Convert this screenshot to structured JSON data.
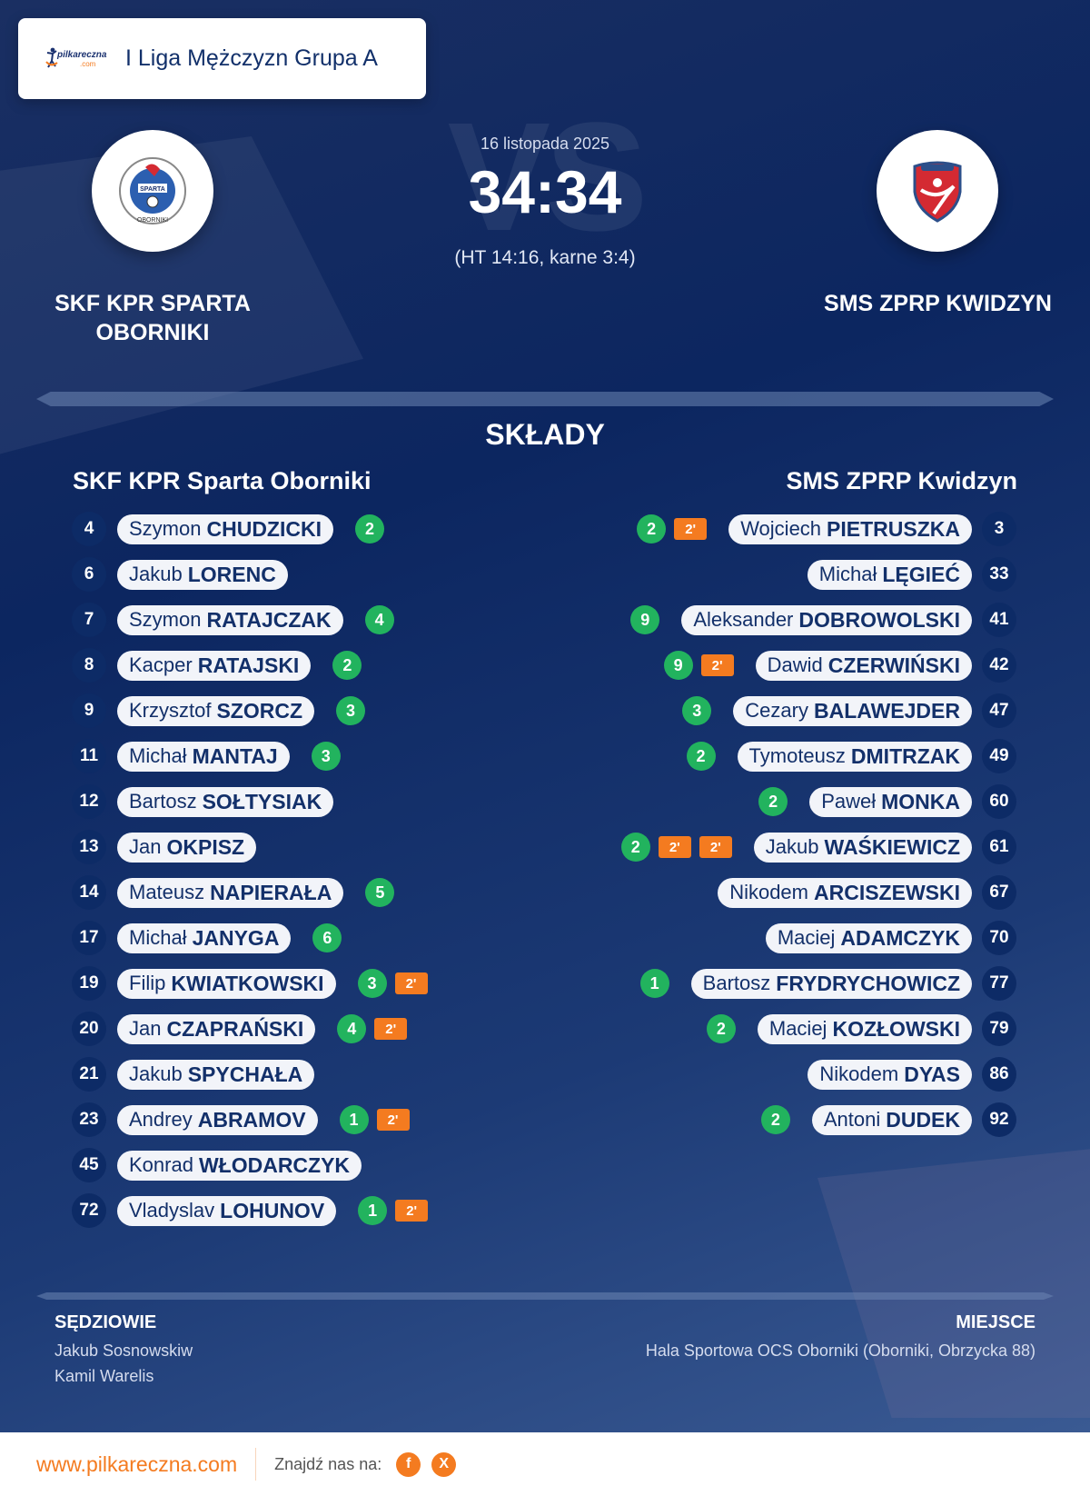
{
  "header": {
    "brand_logo_text": "pilkareczna",
    "brand_logo_suffix": ".com",
    "league": "I Liga Mężczyzn Grupa A"
  },
  "match": {
    "date": "16 listopada 2025",
    "score": "34:34",
    "score_detail": "(HT 14:16, karne 3:4)",
    "vs_watermark": "VS",
    "home": {
      "name": "SKF KPR SPARTA OBORNIKI",
      "logo": "sparta-oborniki-crest"
    },
    "away": {
      "name": "SMS ZPRP KWIDZYN",
      "logo": "sms-kwidzyn-crest"
    }
  },
  "lineups": {
    "title": "SKŁADY",
    "home": {
      "team": "SKF KPR Sparta Oborniki",
      "players": [
        {
          "number": "4",
          "first": "Szymon",
          "last": "CHUDZICKI",
          "goals": "2",
          "penalties": []
        },
        {
          "number": "6",
          "first": "Jakub",
          "last": "LORENC",
          "goals": null,
          "penalties": []
        },
        {
          "number": "7",
          "first": "Szymon",
          "last": "RATAJCZAK",
          "goals": "4",
          "penalties": []
        },
        {
          "number": "8",
          "first": "Kacper",
          "last": "RATAJSKI",
          "goals": "2",
          "penalties": []
        },
        {
          "number": "9",
          "first": "Krzysztof",
          "last": "SZORCZ",
          "goals": "3",
          "penalties": []
        },
        {
          "number": "11",
          "first": "Michał",
          "last": "MANTAJ",
          "goals": "3",
          "penalties": []
        },
        {
          "number": "12",
          "first": "Bartosz",
          "last": "SOŁTYSIAK",
          "goals": null,
          "penalties": []
        },
        {
          "number": "13",
          "first": "Jan",
          "last": "OKPISZ",
          "goals": null,
          "penalties": []
        },
        {
          "number": "14",
          "first": "Mateusz",
          "last": "NAPIERAŁA",
          "goals": "5",
          "penalties": []
        },
        {
          "number": "17",
          "first": "Michał",
          "last": "JANYGA",
          "goals": "6",
          "penalties": []
        },
        {
          "number": "19",
          "first": "Filip",
          "last": "KWIATKOWSKI",
          "goals": "3",
          "penalties": [
            "2'"
          ]
        },
        {
          "number": "20",
          "first": "Jan",
          "last": "CZAPRAŃSKI",
          "goals": "4",
          "penalties": [
            "2'"
          ]
        },
        {
          "number": "21",
          "first": "Jakub",
          "last": "SPYCHAŁA",
          "goals": null,
          "penalties": []
        },
        {
          "number": "23",
          "first": "Andrey",
          "last": "ABRAMOV",
          "goals": "1",
          "penalties": [
            "2'"
          ]
        },
        {
          "number": "45",
          "first": "Konrad",
          "last": "WŁODARCZYK",
          "goals": null,
          "penalties": []
        },
        {
          "number": "72",
          "first": "Vladyslav",
          "last": "LOHUNOV",
          "goals": "1",
          "penalties": [
            "2'"
          ]
        }
      ]
    },
    "away": {
      "team": "SMS ZPRP Kwidzyn",
      "players": [
        {
          "number": "3",
          "first": "Wojciech",
          "last": "PIETRUSZKA",
          "goals": "2",
          "penalties": [
            "2'"
          ]
        },
        {
          "number": "33",
          "first": "Michał",
          "last": "LĘGIEĆ",
          "goals": null,
          "penalties": []
        },
        {
          "number": "41",
          "first": "Aleksander",
          "last": "DOBROWOLSKI",
          "goals": "9",
          "penalties": []
        },
        {
          "number": "42",
          "first": "Dawid",
          "last": "CZERWIŃSKI",
          "goals": "9",
          "penalties": [
            "2'"
          ]
        },
        {
          "number": "47",
          "first": "Cezary",
          "last": "BALAWEJDER",
          "goals": "3",
          "penalties": []
        },
        {
          "number": "49",
          "first": "Tymoteusz",
          "last": "DMITRZAK",
          "goals": "2",
          "penalties": []
        },
        {
          "number": "60",
          "first": "Paweł",
          "last": "MONKA",
          "goals": "2",
          "penalties": []
        },
        {
          "number": "61",
          "first": "Jakub",
          "last": "WAŚKIEWICZ",
          "goals": "2",
          "penalties": [
            "2'",
            "2'"
          ]
        },
        {
          "number": "67",
          "first": "Nikodem",
          "last": "ARCISZEWSKI",
          "goals": null,
          "penalties": []
        },
        {
          "number": "70",
          "first": "Maciej",
          "last": "ADAMCZYK",
          "goals": null,
          "penalties": []
        },
        {
          "number": "77",
          "first": "Bartosz",
          "last": "FRYDRYCHOWICZ",
          "goals": "1",
          "penalties": []
        },
        {
          "number": "79",
          "first": "Maciej",
          "last": "KOZŁOWSKI",
          "goals": "2",
          "penalties": []
        },
        {
          "number": "86",
          "first": "Nikodem",
          "last": "DYAS",
          "goals": null,
          "penalties": []
        },
        {
          "number": "92",
          "first": "Antoni",
          "last": "DUDEK",
          "goals": "2",
          "penalties": []
        }
      ]
    }
  },
  "officials": {
    "label": "SĘDZIOWIE",
    "names": [
      "Jakub Sosnowskiw",
      "Kamil Warelis"
    ]
  },
  "venue": {
    "label": "MIEJSCE",
    "text": "Hala Sportowa OCS Oborniki (Oborniki, Obrzycka 88)"
  },
  "footer": {
    "url": "www.pilkareczna.com",
    "find_us": "Znajdź nas na:",
    "social": [
      {
        "icon": "facebook-icon",
        "glyph": "f"
      },
      {
        "icon": "x-icon",
        "glyph": "X"
      }
    ]
  },
  "colors": {
    "background": "#0c2660",
    "accent_orange": "#f47b20",
    "goal_green": "#22b35e",
    "number_circle": "#0d2b66",
    "pill_bg": "#f2f4f9",
    "text_navy": "#13306a"
  }
}
